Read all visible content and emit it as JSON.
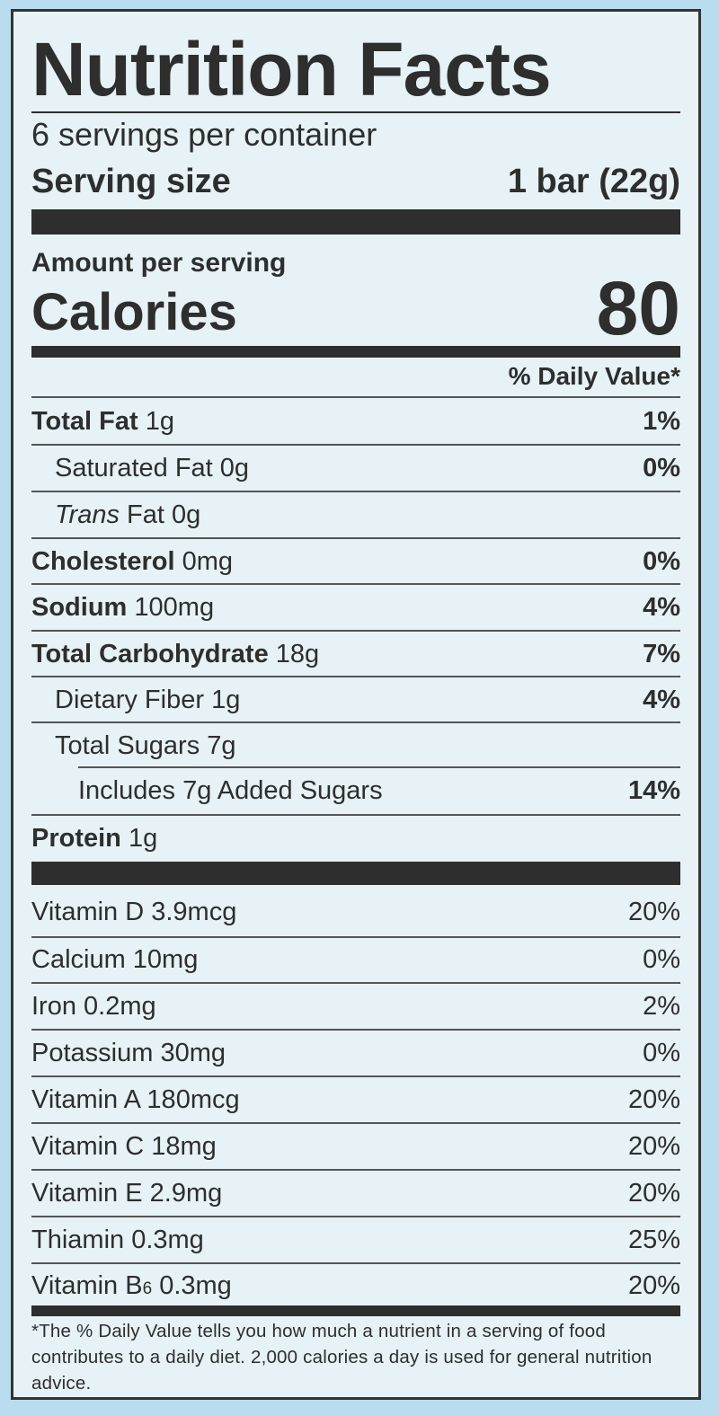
{
  "title": "Nutrition Facts",
  "servings_per_container": "6 servings per container",
  "serving_size_label": "Serving size",
  "serving_size_value": "1 bar (22g)",
  "amount_per_serving": "Amount per serving",
  "calories_label": "Calories",
  "calories_value": "80",
  "daily_value_header": "% Daily Value*",
  "nutrients": [
    {
      "name": "Total Fat",
      "amount": "1g",
      "dv": "1%"
    },
    {
      "name": "Saturated Fat",
      "amount": "0g",
      "dv": "0%"
    },
    {
      "name": "Trans",
      "amount": "Fat 0g",
      "dv": ""
    },
    {
      "name": "Cholesterol",
      "amount": "0mg",
      "dv": "0%"
    },
    {
      "name": "Sodium",
      "amount": "100mg",
      "dv": "4%"
    },
    {
      "name": "Total Carbohydrate",
      "amount": "18g",
      "dv": "7%"
    },
    {
      "name": "Dietary Fiber",
      "amount": "1g",
      "dv": "4%"
    },
    {
      "name": "Total Sugars",
      "amount": "7g",
      "dv": ""
    },
    {
      "name": "Includes 7g Added Sugars",
      "amount": "",
      "dv": "14%"
    },
    {
      "name": "Protein",
      "amount": "1g",
      "dv": ""
    }
  ],
  "vitamins": [
    {
      "text": "Vitamin D 3.9mcg",
      "dv": "20%"
    },
    {
      "text": "Calcium 10mg",
      "dv": "0%"
    },
    {
      "text": "Iron 0.2mg",
      "dv": "2%"
    },
    {
      "text": "Potassium 30mg",
      "dv": "0%"
    },
    {
      "text": "Vitamin A 180mcg",
      "dv": "20%"
    },
    {
      "text": "Vitamin C 18mg",
      "dv": "20%"
    },
    {
      "text": "Vitamin E 2.9mg",
      "dv": "20%"
    },
    {
      "text": "Thiamin 0.3mg",
      "dv": "25%"
    },
    {
      "text_prefix": "Vitamin B",
      "text_sub": "6",
      "text_suffix": " 0.3mg",
      "dv": "20%"
    }
  ],
  "footnote": "*The % Daily Value tells you how much a nutrient in a serving of food contributes to a daily diet. 2,000 calories a day is used for general nutrition advice."
}
